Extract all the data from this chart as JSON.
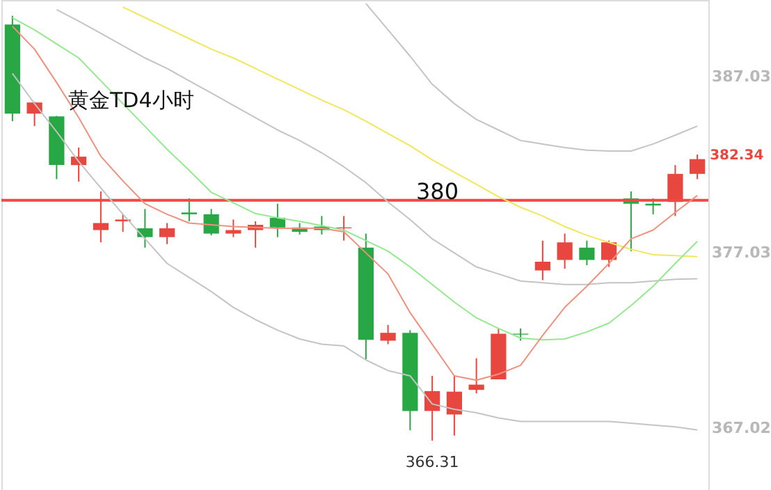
{
  "chart_data": {
    "type": "candlestick",
    "categories": [
      null,
      null,
      null,
      null,
      null,
      null,
      null,
      null,
      null,
      null,
      null,
      null,
      null,
      null,
      null,
      null,
      null,
      null,
      null,
      null,
      null,
      null,
      null,
      null,
      null,
      null,
      null,
      null,
      null,
      null,
      null,
      null
    ],
    "ohlc": [
      [
        390.0,
        390.5,
        384.5,
        384.93
      ],
      [
        384.93,
        385.6,
        384.22,
        385.56
      ],
      [
        384.77,
        384.8,
        381.2,
        382.01
      ],
      [
        382.0,
        383.0,
        381.06,
        382.48
      ],
      [
        378.3,
        380.5,
        377.6,
        378.7
      ],
      [
        378.8,
        379.2,
        378.2,
        378.9
      ],
      [
        378.4,
        379.5,
        377.3,
        377.9
      ],
      [
        377.9,
        378.7,
        377.5,
        378.4
      ],
      [
        379.3,
        380.1,
        378.8,
        379.2
      ],
      [
        379.2,
        379.5,
        378.0,
        378.1
      ],
      [
        378.1,
        378.9,
        377.9,
        378.3
      ],
      [
        378.3,
        378.8,
        377.3,
        378.6
      ],
      [
        379.0,
        379.8,
        377.9,
        378.45
      ],
      [
        378.45,
        378.7,
        378.05,
        378.2
      ],
      [
        378.5,
        379.1,
        378.05,
        378.3
      ],
      [
        378.4,
        379.1,
        377.7,
        378.45
      ],
      [
        377.3,
        378.1,
        370.95,
        372.05
      ],
      [
        372.0,
        372.9,
        371.8,
        372.45
      ],
      [
        372.45,
        372.6,
        366.9,
        368.0
      ],
      [
        368.0,
        370.0,
        366.31,
        369.13
      ],
      [
        367.8,
        370.0,
        366.6,
        369.1
      ],
      [
        369.2,
        371.0,
        369.0,
        369.5
      ],
      [
        369.8,
        372.7,
        369.8,
        372.4
      ],
      [
        372.4,
        372.7,
        372.0,
        372.35
      ],
      [
        376.0,
        377.7,
        375.45,
        376.5
      ],
      [
        376.6,
        378.1,
        376.1,
        377.6
      ],
      [
        377.3,
        377.7,
        376.3,
        376.6
      ],
      [
        376.6,
        377.7,
        376.2,
        377.6
      ],
      [
        380.1,
        380.5,
        377.1,
        379.8
      ],
      [
        379.8,
        380.1,
        379.2,
        379.7
      ],
      [
        379.9,
        382.0,
        379.1,
        381.5
      ],
      [
        381.5,
        382.6,
        381.2,
        382.34
      ]
    ],
    "colors": [
      "#28a745",
      "#e8473f",
      "#28a745",
      "#e8473f",
      "#e8473f",
      "#e8473f",
      "#28a745",
      "#e8473f",
      "#28a745",
      "#28a745",
      "#e8473f",
      "#e8473f",
      "#28a745",
      "#28a745",
      "#28a745",
      "#e8473f",
      "#28a745",
      "#e8473f",
      "#28a745",
      "#e8473f",
      "#e8473f",
      "#e8473f",
      "#e8473f",
      "#28a745",
      "#e8473f",
      "#e8473f",
      "#28a745",
      "#e8473f",
      "#28a745",
      "#28a745",
      "#e8473f",
      "#e8473f"
    ],
    "series": [
      {
        "type": "line",
        "color": "#c4c4c4",
        "values": [
          null,
          null,
          null,
          null,
          null,
          null,
          null,
          null,
          null,
          null,
          null,
          null,
          null,
          null,
          null,
          null,
          391.2,
          389.7,
          388.2,
          386.6,
          385.5,
          384.6,
          384.0,
          383.4,
          383.2,
          383.0,
          382.85,
          382.8,
          382.8,
          383.2,
          383.7,
          384.22
        ]
      },
      {
        "type": "line",
        "color": "#c4c4c4",
        "values": [
          null,
          null,
          390.85,
          390.2,
          389.5,
          388.8,
          388.1,
          387.5,
          386.8,
          386.1,
          385.4,
          384.7,
          384.0,
          383.4,
          382.7,
          381.9,
          381.0,
          379.9,
          378.9,
          377.8,
          377.0,
          376.2,
          375.8,
          375.4,
          375.3,
          375.2,
          375.2,
          375.3,
          375.3,
          375.4,
          375.5,
          375.53
        ]
      },
      {
        "type": "line",
        "color": "#c4c4c4",
        "values": [
          387.22,
          385.5,
          383.9,
          382.2,
          380.7,
          379.2,
          377.8,
          376.4,
          375.6,
          374.8,
          373.9,
          373.2,
          372.6,
          372.1,
          371.8,
          371.7,
          370.9,
          370.3,
          370.0,
          368.4,
          368.1,
          367.9,
          367.6,
          367.4,
          367.4,
          367.4,
          367.4,
          367.4,
          367.3,
          367.2,
          367.1,
          366.92
        ]
      },
      {
        "type": "line",
        "color": "#f2e65c",
        "values": [
          null,
          null,
          null,
          null,
          null,
          391.0,
          390.4,
          389.8,
          389.2,
          388.6,
          388.1,
          387.5,
          386.9,
          386.3,
          385.7,
          385.15,
          384.5,
          383.8,
          383.1,
          382.3,
          381.6,
          380.9,
          380.2,
          379.6,
          379.1,
          378.5,
          378.0,
          377.6,
          377.2,
          376.9,
          376.85,
          376.79
        ]
      },
      {
        "type": "line",
        "color": "#94e88f",
        "values": [
          390.38,
          389.7,
          388.9,
          388.1,
          386.8,
          385.5,
          384.2,
          382.9,
          381.7,
          380.45,
          379.85,
          379.24,
          379.0,
          378.8,
          378.55,
          378.3,
          377.7,
          377.1,
          376.2,
          375.2,
          374.2,
          373.3,
          372.7,
          372.15,
          372.05,
          372.1,
          372.5,
          373.0,
          374.0,
          375.1,
          376.4,
          377.66
        ]
      },
      {
        "type": "line",
        "color": "#f0907e",
        "values": [
          389.9,
          388.6,
          386.7,
          384.7,
          382.5,
          381.1,
          379.8,
          379.2,
          378.7,
          378.6,
          378.5,
          378.45,
          378.4,
          378.4,
          378.4,
          378.2,
          377.0,
          375.8,
          373.6,
          371.8,
          370.0,
          369.75,
          370.1,
          370.6,
          372.3,
          373.9,
          375.1,
          376.4,
          377.8,
          378.3,
          379.3,
          380.27
        ]
      }
    ],
    "ylim": [
      363.5,
      391.4
    ],
    "yticks": [
      367.02,
      377.03,
      387.03
    ],
    "tick_labels": "y",
    "grid": false,
    "ref_lines": [
      {
        "axis": "y",
        "value": 380,
        "label": "380",
        "color": "#f04848"
      }
    ],
    "annotations": [
      "黄金TD4小时",
      {
        "text": "366.31",
        "y": 366.31
      },
      "382.34"
    ]
  }
}
